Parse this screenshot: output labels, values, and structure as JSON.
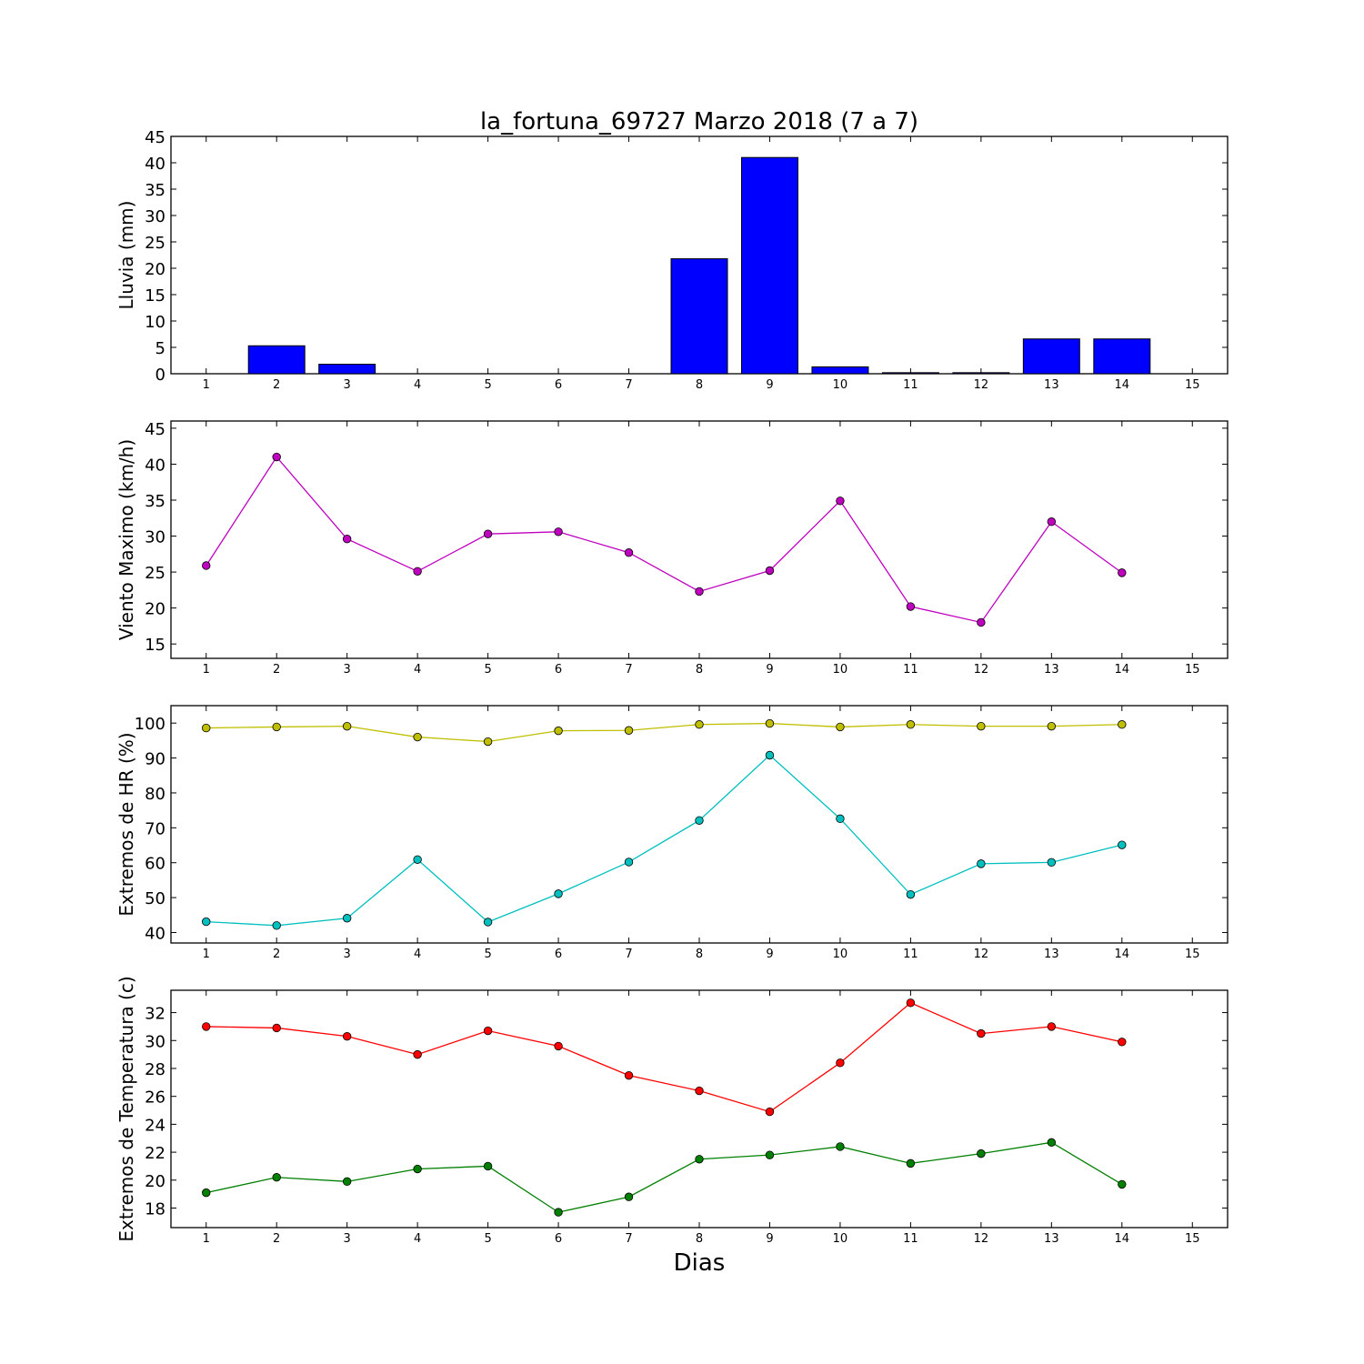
{
  "chart_data": [
    {
      "type": "bar",
      "title": "la_fortuna_69727 Marzo 2018  (7 a 7)",
      "xlabel": "",
      "ylabel": "Lluvia (mm)",
      "x": [
        1,
        2,
        3,
        4,
        5,
        6,
        7,
        8,
        9,
        10,
        11,
        12,
        13,
        14
      ],
      "xlim": [
        0.5,
        15.5
      ],
      "xticks": [
        1,
        2,
        3,
        4,
        5,
        6,
        7,
        8,
        9,
        10,
        11,
        12,
        13,
        14,
        15
      ],
      "ylim": [
        0,
        45
      ],
      "yticks": [
        0,
        5,
        10,
        15,
        20,
        25,
        30,
        35,
        40,
        45
      ],
      "grid": false,
      "series": [
        {
          "color": "#0000ff",
          "values": [
            0.0,
            5.3,
            1.8,
            0.0,
            0.0,
            0.0,
            0.0,
            21.8,
            41.0,
            1.3,
            0.2,
            0.2,
            6.6,
            6.6
          ]
        }
      ]
    },
    {
      "type": "line",
      "ylabel": "Viento Maximo (km/h)",
      "x": [
        1,
        2,
        3,
        4,
        5,
        6,
        7,
        8,
        9,
        10,
        11,
        12,
        13,
        14
      ],
      "xlim": [
        0.5,
        15.5
      ],
      "xticks": [
        1,
        2,
        3,
        4,
        5,
        6,
        7,
        8,
        9,
        10,
        11,
        12,
        13,
        14,
        15
      ],
      "ylim": [
        13,
        46
      ],
      "yticks": [
        15,
        20,
        25,
        30,
        35,
        40,
        45
      ],
      "grid": false,
      "series": [
        {
          "color": "#bf00bf",
          "values": [
            25.9,
            41.0,
            29.6,
            25.1,
            30.3,
            30.6,
            27.7,
            22.3,
            25.2,
            34.9,
            20.2,
            18.0,
            32.0,
            24.9
          ]
        }
      ]
    },
    {
      "type": "line",
      "ylabel": "Extremos de HR (%)",
      "x": [
        1,
        2,
        3,
        4,
        5,
        6,
        7,
        8,
        9,
        10,
        11,
        12,
        13,
        14
      ],
      "xlim": [
        0.5,
        15.5
      ],
      "xticks": [
        1,
        2,
        3,
        4,
        5,
        6,
        7,
        8,
        9,
        10,
        11,
        12,
        13,
        14,
        15
      ],
      "ylim": [
        37,
        105
      ],
      "yticks": [
        40,
        50,
        60,
        70,
        80,
        90,
        100
      ],
      "grid": false,
      "series": [
        {
          "color": "#bfbf00",
          "values": [
            98.6,
            98.9,
            99.1,
            96.0,
            94.7,
            97.8,
            97.9,
            99.6,
            99.9,
            98.9,
            99.6,
            99.1,
            99.1,
            99.6
          ]
        },
        {
          "color": "#00bfbf",
          "values": [
            43.1,
            42.0,
            44.1,
            60.9,
            43.0,
            51.1,
            60.2,
            72.1,
            90.8,
            72.6,
            50.9,
            59.7,
            60.1,
            65.1
          ]
        }
      ]
    },
    {
      "type": "line",
      "ylabel": "Extremos de Temperatura (c)",
      "xlabel": "Dias",
      "x": [
        1,
        2,
        3,
        4,
        5,
        6,
        7,
        8,
        9,
        10,
        11,
        12,
        13,
        14
      ],
      "xlim": [
        0.5,
        15.5
      ],
      "xticks": [
        1,
        2,
        3,
        4,
        5,
        6,
        7,
        8,
        9,
        10,
        11,
        12,
        13,
        14,
        15
      ],
      "ylim": [
        16.6,
        33.6
      ],
      "yticks": [
        18,
        20,
        22,
        24,
        26,
        28,
        30,
        32
      ],
      "grid": false,
      "series": [
        {
          "color": "#ff0000",
          "values": [
            31.0,
            30.9,
            30.3,
            29.0,
            30.7,
            29.6,
            27.5,
            26.4,
            24.9,
            28.4,
            32.7,
            30.5,
            31.0,
            29.9
          ]
        },
        {
          "color": "#008000",
          "values": [
            19.1,
            20.2,
            19.9,
            20.8,
            21.0,
            17.7,
            18.8,
            21.5,
            21.8,
            22.4,
            21.2,
            21.9,
            22.7,
            19.7
          ]
        }
      ]
    }
  ]
}
